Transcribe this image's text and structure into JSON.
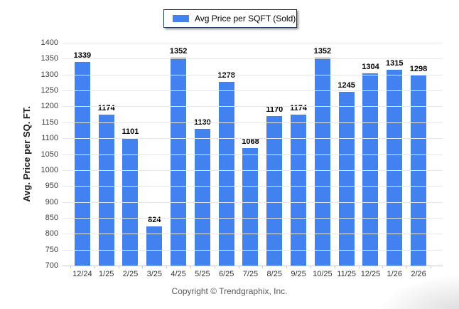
{
  "chart_data": {
    "type": "bar",
    "title": "",
    "legend": "Avg Price per SQFT (Sold)",
    "legend_position": "top-center",
    "ylabel": "Avg. Price per SQ. FT.",
    "xlabel": "",
    "footer": "Copyright © Trendgraphix, Inc.",
    "categories": [
      "12/24",
      "1/25",
      "2/25",
      "3/25",
      "4/25",
      "5/25",
      "6/25",
      "7/25",
      "8/25",
      "9/25",
      "10/25",
      "11/25",
      "12/25",
      "1/26",
      "2/26"
    ],
    "values": [
      1339,
      1174,
      1101,
      824,
      1352,
      1130,
      1278,
      1068,
      1170,
      1174,
      1352,
      1245,
      1304,
      1315,
      1298
    ],
    "ylim": [
      700,
      1400
    ],
    "ytick_step": 50,
    "grid": true,
    "bar_color": "#4282f0",
    "gridline_color": "#e8e8e8",
    "axis_line_color": "#c9c9c9"
  }
}
